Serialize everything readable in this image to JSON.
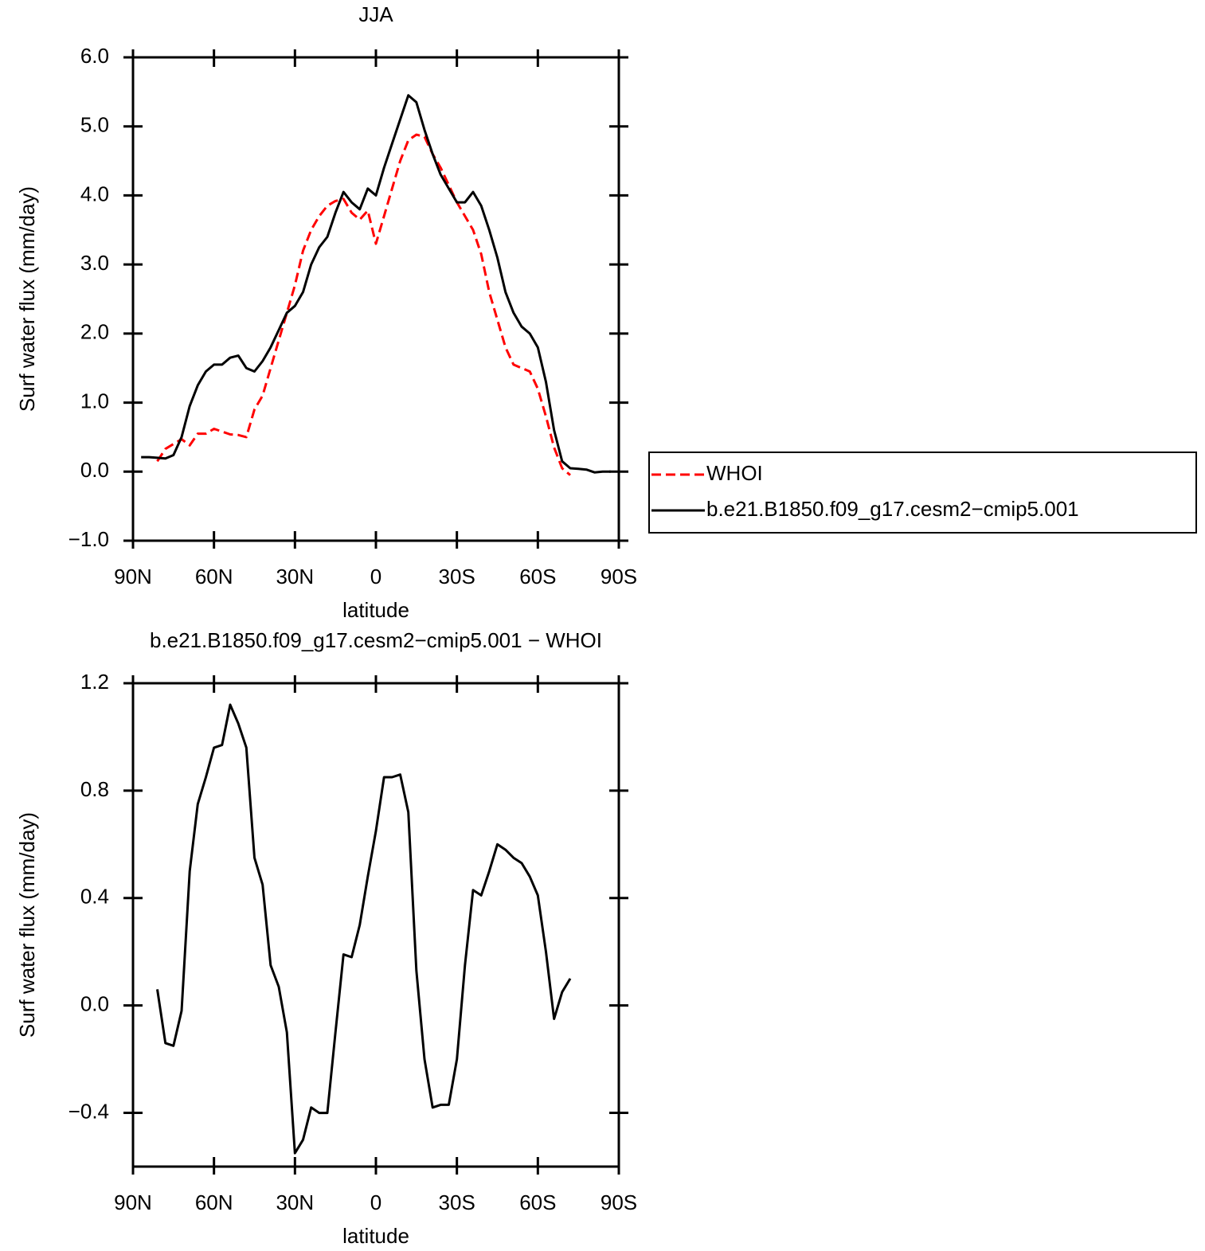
{
  "chart_data": [
    {
      "type": "line",
      "title": "JJA",
      "x_label": "latitude",
      "y_label": "Surf water flux (mm/day)",
      "x": [
        87,
        84,
        81,
        78,
        75,
        72,
        69,
        66,
        63,
        60,
        57,
        54,
        51,
        48,
        45,
        42,
        39,
        36,
        33,
        30,
        27,
        24,
        21,
        18,
        15,
        12,
        9,
        6,
        3,
        0,
        -3,
        -6,
        -9,
        -12,
        -15,
        -18,
        -21,
        -24,
        -27,
        -30,
        -33,
        -36,
        -39,
        -42,
        -45,
        -48,
        -51,
        -54,
        -57,
        -60,
        -63,
        -66,
        -69,
        -72,
        -75,
        -78,
        -81,
        -84,
        -87
      ],
      "xlim": [
        90,
        -90
      ],
      "xticks": [
        {
          "value": 90,
          "label": "90N"
        },
        {
          "value": 60,
          "label": "60N"
        },
        {
          "value": 30,
          "label": "30N"
        },
        0,
        {
          "value": -30,
          "label": "30S"
        },
        {
          "value": -60,
          "label": "60S"
        },
        {
          "value": -90,
          "label": "90S"
        }
      ],
      "ylim": [
        -1,
        6
      ],
      "yticks": [
        {
          "value": -1,
          "label": "−1.0"
        },
        {
          "value": 0,
          "label": "0.0"
        },
        {
          "value": 1,
          "label": "1.0"
        },
        {
          "value": 2,
          "label": "2.0"
        },
        {
          "value": 3,
          "label": "3.0"
        },
        {
          "value": 4,
          "label": "4.0"
        },
        {
          "value": 5,
          "label": "5.0"
        },
        {
          "value": 6,
          "label": "6.0"
        }
      ],
      "legend": "right",
      "series": [
        {
          "name": "WHOI",
          "color": "#ff0000",
          "style": "dashed",
          "values": [
            null,
            null,
            0.15,
            0.33,
            0.4,
            0.47,
            0.38,
            0.55,
            0.55,
            0.62,
            0.58,
            0.54,
            0.53,
            0.5,
            0.9,
            1.1,
            1.5,
            1.9,
            2.3,
            2.7,
            3.2,
            3.5,
            3.7,
            3.85,
            3.92,
            3.95,
            3.75,
            3.65,
            3.78,
            3.3,
            3.7,
            4.1,
            4.5,
            4.8,
            4.88,
            4.85,
            4.6,
            4.4,
            4.15,
            3.9,
            3.7,
            3.5,
            3.15,
            2.6,
            2.2,
            1.8,
            1.55,
            1.5,
            1.45,
            1.2,
            0.8,
            0.35,
            0.05,
            -0.05,
            null,
            null,
            null,
            null,
            null
          ]
        },
        {
          "name": "b.e21.B1850.f09_g17.cesm2−cmip5.001",
          "color": "#000000",
          "style": "solid",
          "values": [
            0.21,
            0.21,
            0.2,
            0.19,
            0.24,
            0.5,
            0.95,
            1.25,
            1.45,
            1.55,
            1.55,
            1.65,
            1.68,
            1.5,
            1.45,
            1.6,
            1.8,
            2.05,
            2.3,
            2.4,
            2.6,
            3.0,
            3.25,
            3.4,
            3.75,
            4.05,
            3.9,
            3.8,
            4.1,
            4.0,
            4.4,
            4.75,
            5.1,
            5.45,
            5.35,
            4.95,
            4.6,
            4.3,
            4.1,
            3.9,
            3.9,
            4.05,
            3.85,
            3.5,
            3.1,
            2.6,
            2.3,
            2.1,
            2.0,
            1.8,
            1.3,
            0.6,
            0.15,
            0.05,
            0.04,
            0.03,
            -0.01,
            0.0,
            0.0
          ]
        }
      ]
    },
    {
      "type": "line",
      "title": "b.e21.B1850.f09_g17.cesm2−cmip5.001  −  WHOI",
      "x_label": "latitude",
      "y_label": "Surf water flux (mm/day)",
      "x": [
        81,
        78,
        75,
        72,
        69,
        66,
        63,
        60,
        57,
        54,
        51,
        48,
        45,
        42,
        39,
        36,
        33,
        30,
        27,
        24,
        21,
        18,
        15,
        12,
        9,
        6,
        3,
        0,
        -3,
        -6,
        -9,
        -12,
        -15,
        -18,
        -21,
        -24,
        -27,
        -30,
        -33,
        -36,
        -39,
        -42,
        -45,
        -48,
        -51,
        -54,
        -57,
        -60,
        -63,
        -66,
        -69,
        -72
      ],
      "xlim": [
        90,
        -90
      ],
      "xticks": [
        {
          "value": 90,
          "label": "90N"
        },
        {
          "value": 60,
          "label": "60N"
        },
        {
          "value": 30,
          "label": "30N"
        },
        0,
        {
          "value": -30,
          "label": "30S"
        },
        {
          "value": -60,
          "label": "60S"
        },
        {
          "value": -90,
          "label": "90S"
        }
      ],
      "ylim": [
        -0.6,
        1.2
      ],
      "yticks": [
        {
          "value": -0.4,
          "label": "−0.4"
        },
        {
          "value": 0,
          "label": "0.0"
        },
        0.4,
        0.8,
        1.2
      ],
      "series": [
        {
          "color": "#000000",
          "style": "solid",
          "values": [
            0.06,
            -0.14,
            -0.15,
            -0.02,
            0.5,
            0.75,
            0.85,
            0.96,
            0.97,
            1.12,
            1.05,
            0.96,
            0.55,
            0.45,
            0.15,
            0.07,
            -0.1,
            -0.55,
            -0.5,
            -0.38,
            -0.4,
            -0.4,
            -0.1,
            0.19,
            0.18,
            0.3,
            0.48,
            0.65,
            0.85,
            0.85,
            0.86,
            0.72,
            0.13,
            -0.2,
            -0.38,
            -0.37,
            -0.37,
            -0.2,
            0.15,
            0.43,
            0.41,
            0.5,
            0.6,
            0.58,
            0.55,
            0.53,
            0.48,
            0.41,
            0.2,
            -0.05,
            0.05,
            0.1
          ]
        }
      ]
    }
  ]
}
